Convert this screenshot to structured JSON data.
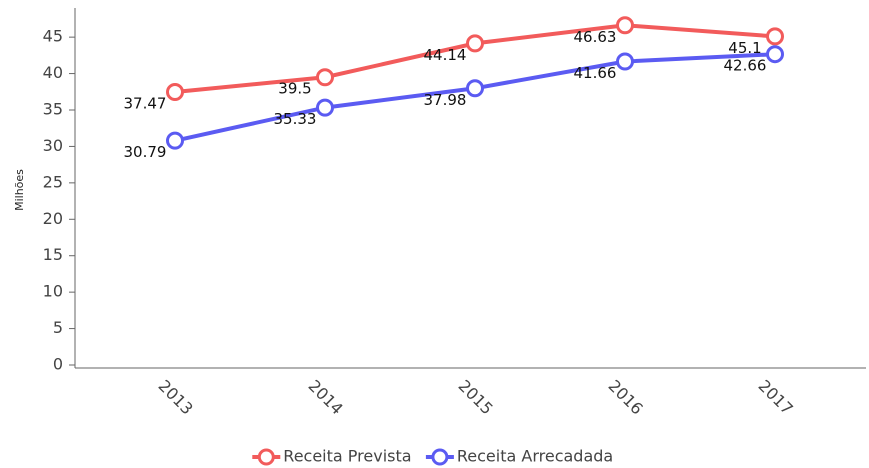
{
  "chart_data": {
    "type": "line",
    "y_label": "Milhões",
    "categories": [
      "2013",
      "2014",
      "2015",
      "2016",
      "2017"
    ],
    "series": [
      {
        "name": "Receita Prevista",
        "color": "#f25b5b",
        "values": [
          37.47,
          39.5,
          44.14,
          46.63,
          45.1
        ]
      },
      {
        "name": "Receita Arrecadada",
        "color": "#5b5bf2",
        "values": [
          30.79,
          35.33,
          37.98,
          41.66,
          42.66
        ]
      }
    ],
    "ylim": [
      0,
      49
    ],
    "yticks": [
      0,
      5,
      10,
      15,
      20,
      25,
      30,
      35,
      40,
      45
    ]
  }
}
